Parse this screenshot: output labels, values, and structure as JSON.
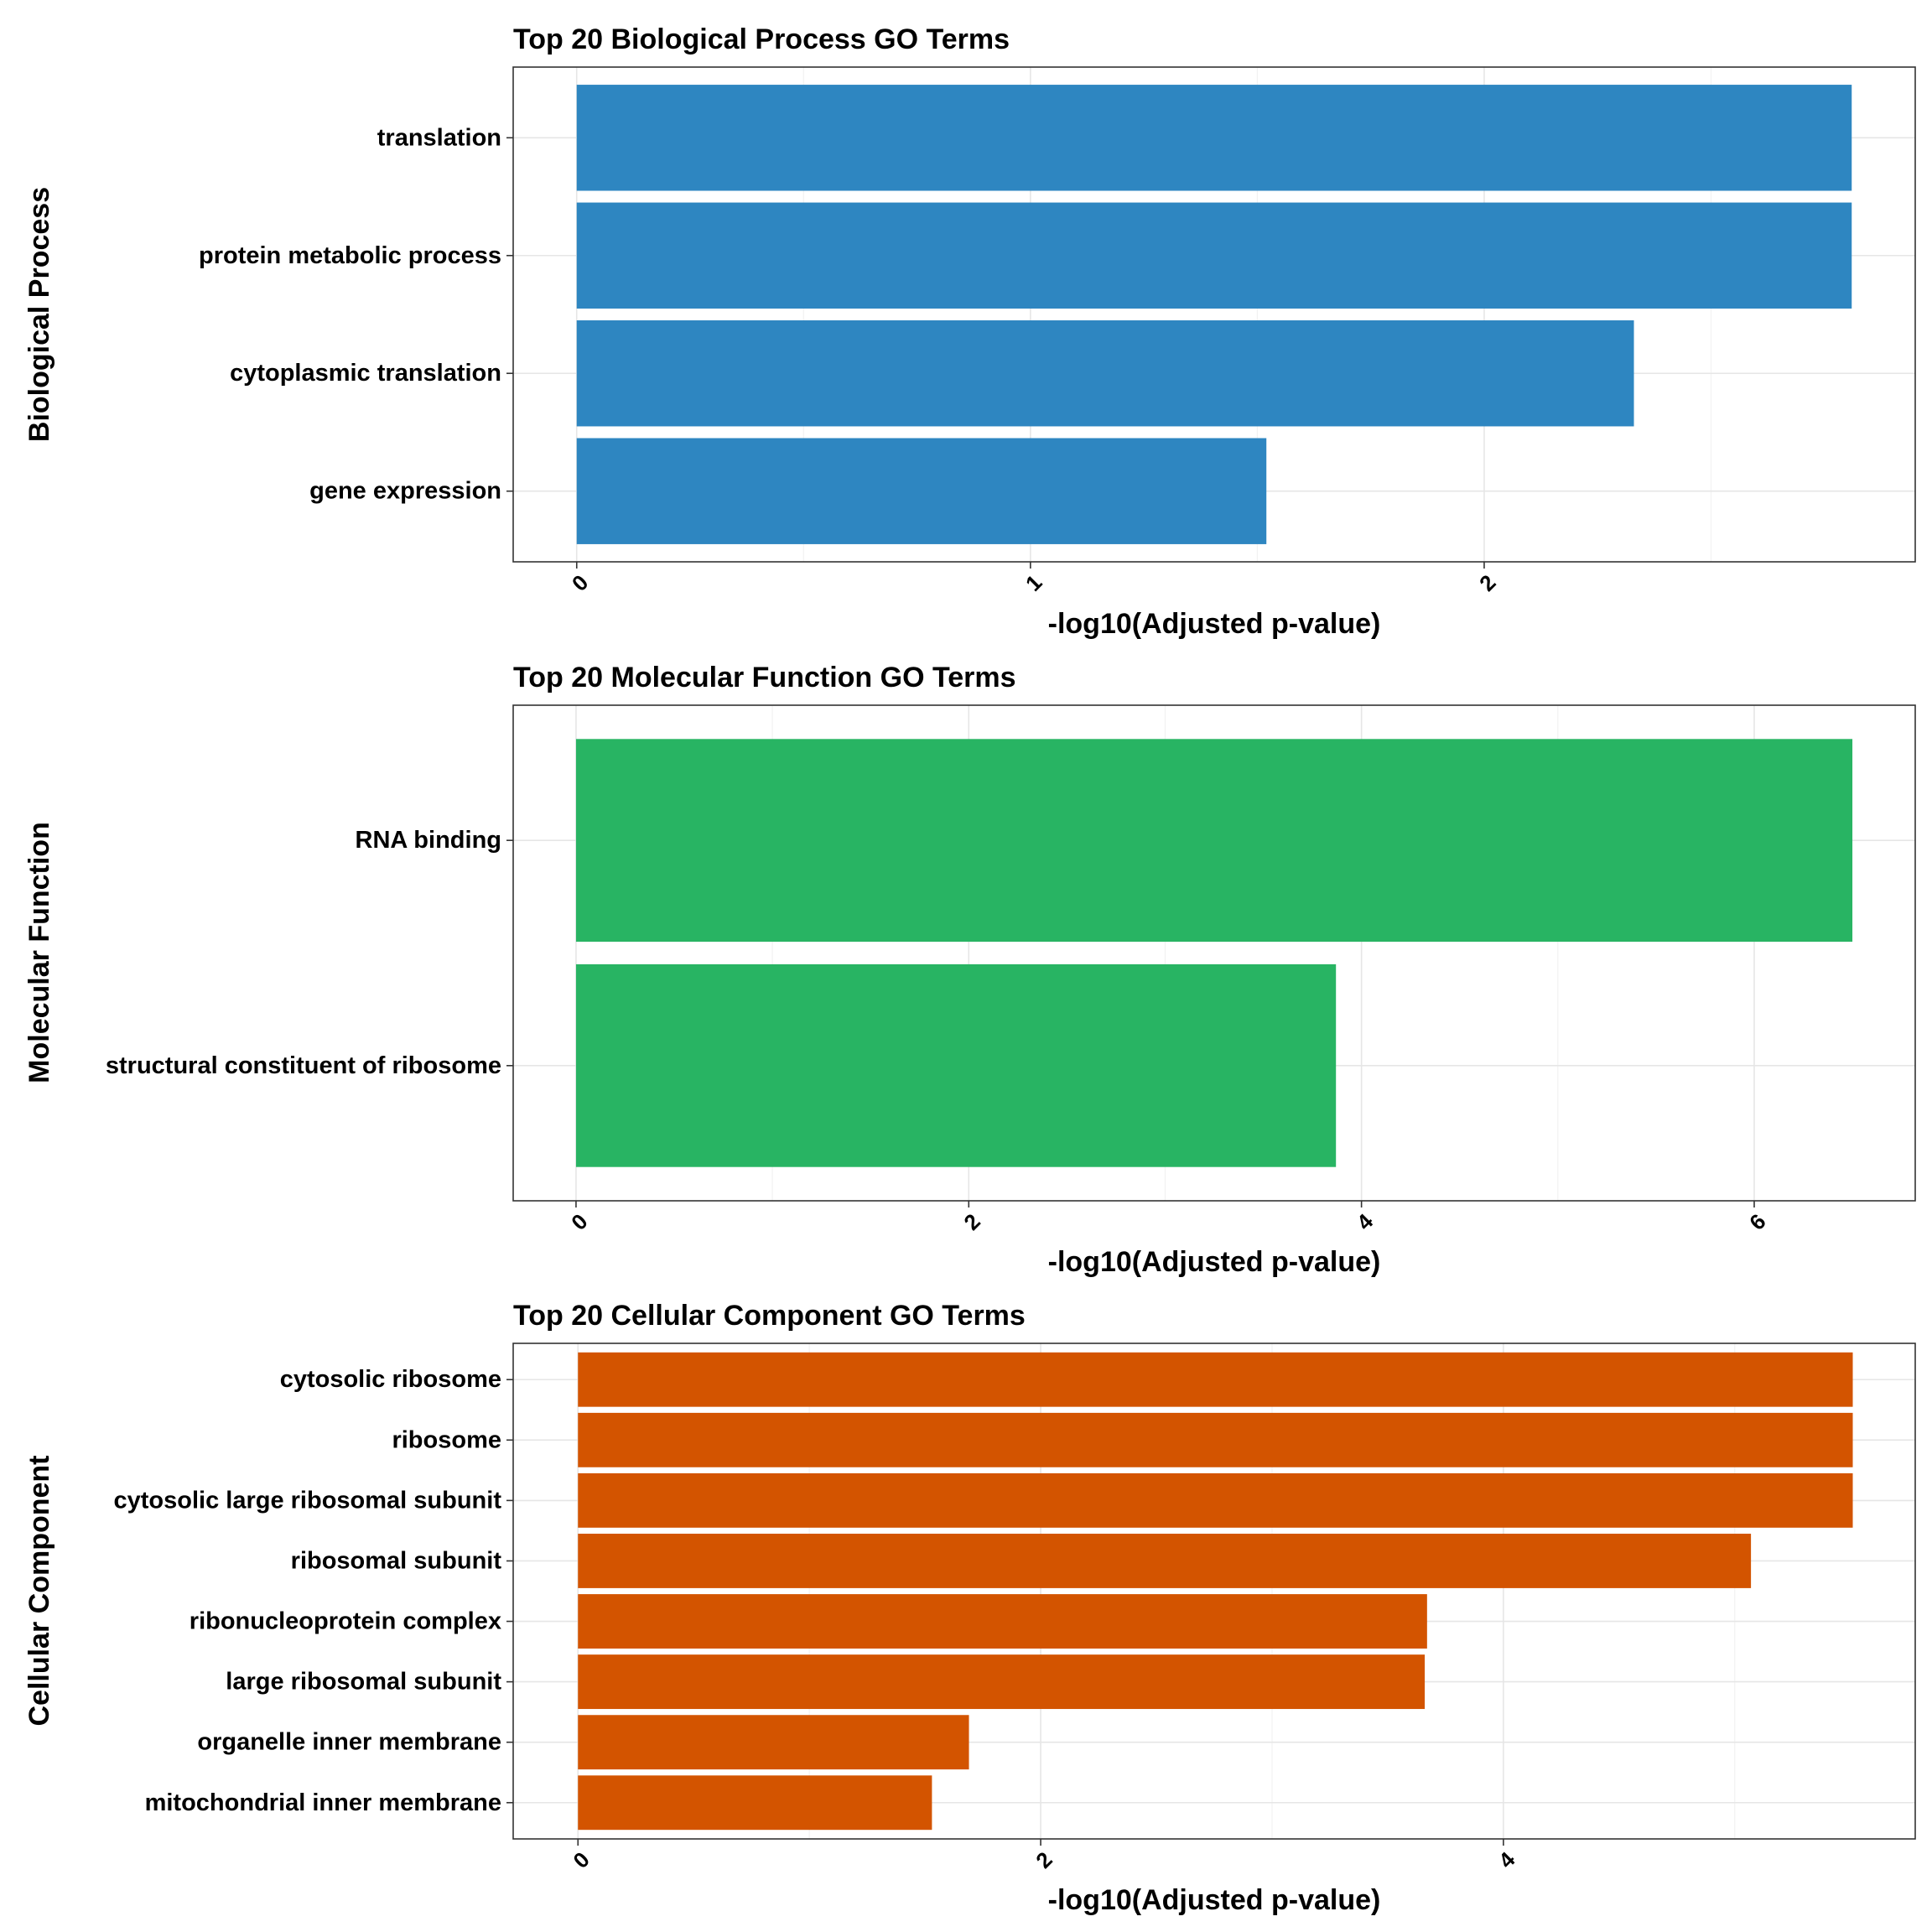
{
  "chart_data": [
    {
      "type": "bar",
      "orientation": "horizontal",
      "title": "Top 20 Biological Process GO Terms",
      "xlabel": "-log10(Adjusted p-value)",
      "ylabel": "Biological Process",
      "categories": [
        "translation",
        "protein metabolic process",
        "cytoplasmic translation",
        "gene expression"
      ],
      "values": [
        2.81,
        2.81,
        2.33,
        1.52
      ],
      "xlim": [
        -0.14,
        2.95
      ],
      "xticks": [
        0,
        1,
        2
      ],
      "tick_labels": [
        "0",
        "1",
        "2"
      ],
      "color": "#2E86C1",
      "grid": true
    },
    {
      "type": "bar",
      "orientation": "horizontal",
      "title": "Top 20 Molecular Function GO Terms",
      "xlabel": "-log10(Adjusted p-value)",
      "ylabel": "Molecular Function",
      "categories": [
        "RNA binding",
        "structural constituent of ribosome"
      ],
      "values": [
        6.5,
        3.87
      ],
      "xlim": [
        -0.32,
        6.82
      ],
      "xticks": [
        0,
        2,
        4,
        6
      ],
      "tick_labels": [
        "0",
        "2",
        "4",
        "6"
      ],
      "color": "#28B463",
      "grid": true
    },
    {
      "type": "bar",
      "orientation": "horizontal",
      "title": "Top 20 Cellular Component GO Terms",
      "xlabel": "-log10(Adjusted p-value)",
      "ylabel": "Cellular Component",
      "categories": [
        "cytosolic ribosome",
        "ribosome",
        "cytosolic large ribosomal subunit",
        "ribosomal subunit",
        "ribonucleoprotein complex",
        "large ribosomal subunit",
        "organelle inner membrane",
        "mitochondrial inner membrane"
      ],
      "values": [
        5.51,
        5.51,
        5.51,
        5.07,
        3.67,
        3.66,
        1.69,
        1.53
      ],
      "xlim": [
        -0.28,
        5.78
      ],
      "xticks": [
        0,
        2,
        4
      ],
      "tick_labels": [
        "0",
        "2",
        "4"
      ],
      "color": "#D35400",
      "grid": true
    }
  ]
}
